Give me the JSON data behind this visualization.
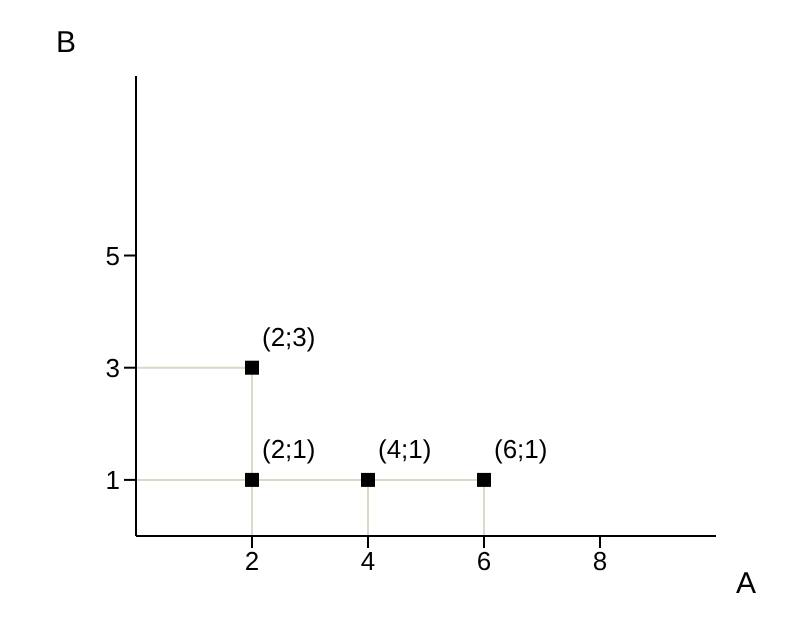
{
  "chart_data": {
    "type": "scatter",
    "xlabel": "A",
    "ylabel": "B",
    "xlim": [
      0,
      10
    ],
    "ylim": [
      0,
      8.2
    ],
    "xticks": [
      2,
      4,
      6,
      8
    ],
    "yticks": [
      1,
      3,
      5
    ],
    "grid": false,
    "legend": false,
    "marker": "square",
    "series": [
      {
        "type": "line",
        "color": "#d9d9c6",
        "x": [
          0,
          2,
          2
        ],
        "values": [
          3,
          3,
          0
        ],
        "marker": "none"
      },
      {
        "type": "line",
        "color": "#d9d9c6",
        "x": [
          0,
          6,
          6
        ],
        "values": [
          1,
          1,
          0
        ],
        "marker": "none"
      },
      {
        "type": "line",
        "color": "#d9d9c6",
        "x": [
          4,
          4
        ],
        "values": [
          0,
          1
        ],
        "marker": "none"
      },
      {
        "color": "#000000",
        "x": [
          2,
          2,
          4,
          6
        ],
        "values": [
          3,
          1,
          1,
          1
        ]
      }
    ],
    "annotations": [
      {
        "text": "(2;3)",
        "x": 2,
        "y": 3
      },
      {
        "text": "(2;1)",
        "x": 2,
        "y": 1
      },
      {
        "text": "(4;1)",
        "x": 4,
        "y": 1
      },
      {
        "text": "(6;1)",
        "x": 6,
        "y": 1
      }
    ]
  }
}
